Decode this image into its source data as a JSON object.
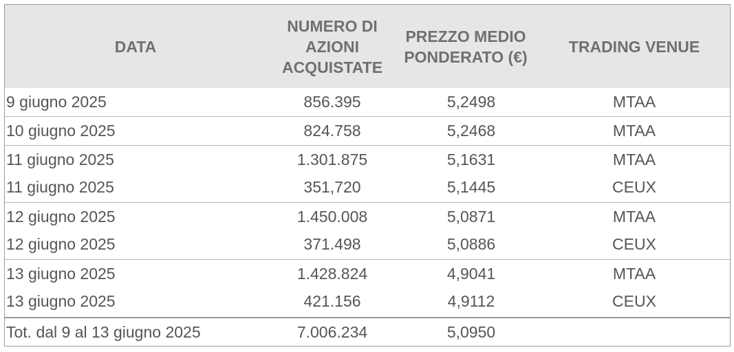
{
  "header": {
    "date": "DATA",
    "shares": [
      "NUMERO DI",
      "AZIONI",
      "ACQUISTATE"
    ],
    "price": [
      "PREZZO MEDIO",
      "PONDERATO (€)"
    ],
    "venue": "TRADING VENUE"
  },
  "rows": [
    {
      "date": "9 giugno 2025",
      "shares": "856.395",
      "price": "5,2498",
      "venue": "MTAA"
    },
    {
      "date": "10 giugno 2025",
      "shares": "824.758",
      "price": "5,2468",
      "venue": "MTAA"
    },
    {
      "date": "11 giugno 2025",
      "shares": "1.301.875",
      "price": "5,1631",
      "venue": "MTAA"
    },
    {
      "date": "11 giugno 2025",
      "shares": "351,720",
      "price": "5,1445",
      "venue": "CEUX"
    },
    {
      "date": "12 giugno 2025",
      "shares": "1.450.008",
      "price": "5,0871",
      "venue": "MTAA"
    },
    {
      "date": "12 giugno 2025",
      "shares": "371.498",
      "price": "5,0886",
      "venue": "CEUX"
    },
    {
      "date": "13 giugno 2025",
      "shares": "1.428.824",
      "price": "4,9041",
      "venue": "MTAA"
    },
    {
      "date": "13 giugno 2025",
      "shares": "421.156",
      "price": "4,9112",
      "venue": "CEUX"
    }
  ],
  "total": {
    "date": "Tot. dal 9 al 13 giugno 2025",
    "shares": "7.006.234",
    "price": "5,0950",
    "venue": ""
  }
}
